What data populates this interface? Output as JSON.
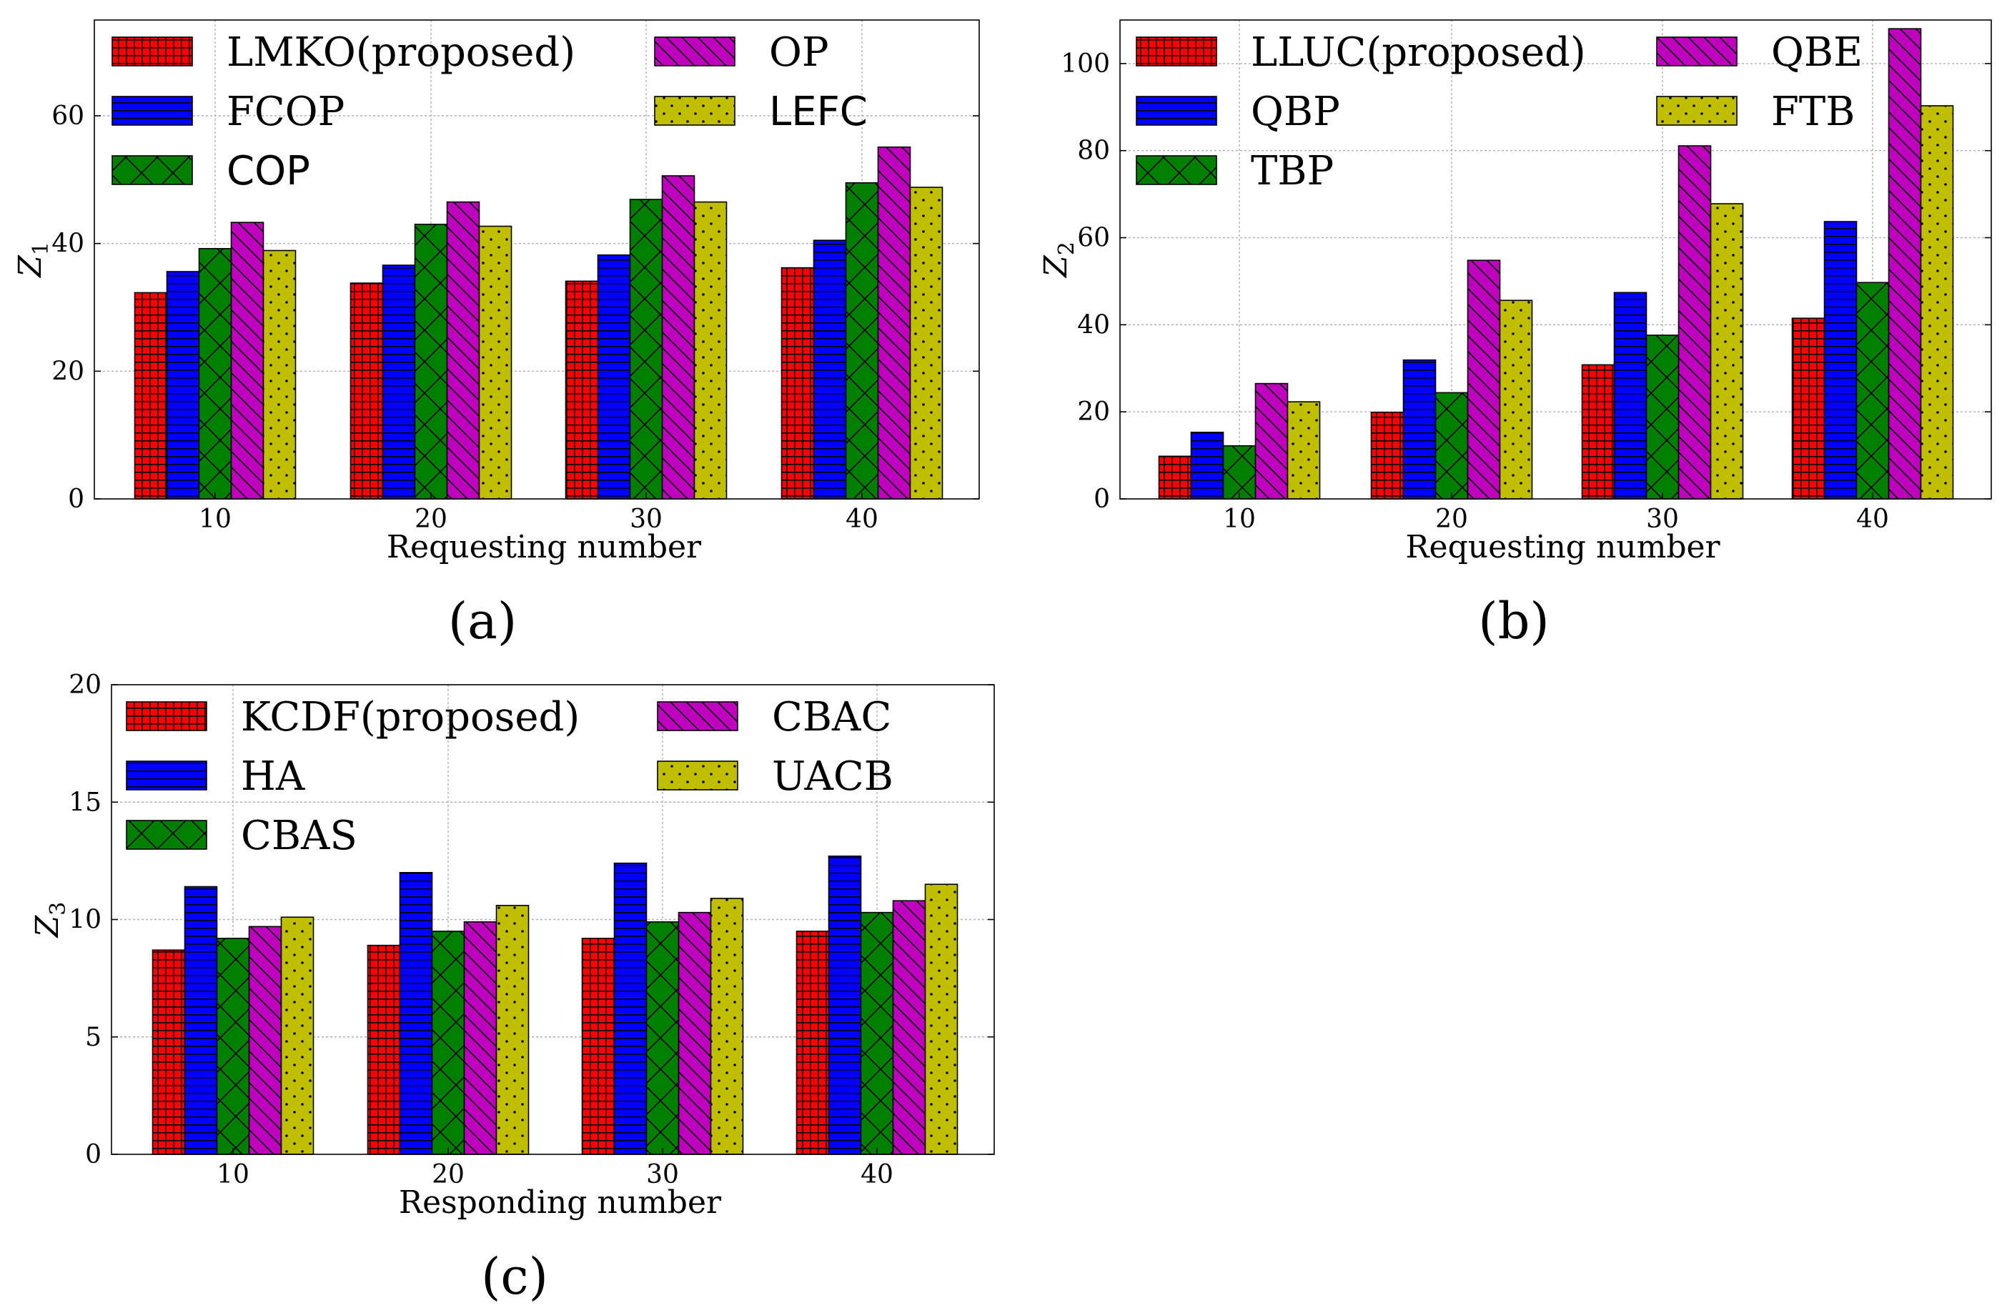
{
  "colors": {
    "red": "#ff0000",
    "blue": "#0000ff",
    "green": "#007f00",
    "magenta": "#bf00bf",
    "olive": "#bfbf00"
  },
  "hatches": [
    "grid",
    "horizontal",
    "cross",
    "diagonal",
    "dots"
  ],
  "chart_data": [
    {
      "type": "bar",
      "panel_label": "(a)",
      "xlabel": "Requesting number",
      "ylabel": "Z",
      "ylabel_sub": "1",
      "categories": [
        "10",
        "20",
        "30",
        "40"
      ],
      "ylim": [
        0,
        75
      ],
      "yticks": [
        0,
        20,
        40,
        60
      ],
      "grid": true,
      "legend_position": "top",
      "series": [
        {
          "name": "LMKO(proposed)",
          "values": [
            32.3,
            33.8,
            34.1,
            36.2
          ]
        },
        {
          "name": "FCOP",
          "values": [
            35.6,
            36.6,
            38.2,
            40.5
          ]
        },
        {
          "name": "COP",
          "values": [
            39.2,
            43.0,
            46.9,
            49.5
          ]
        },
        {
          "name": "OP",
          "values": [
            43.3,
            46.5,
            50.6,
            55.1
          ]
        },
        {
          "name": "LEFC",
          "values": [
            38.9,
            42.7,
            46.5,
            48.8
          ]
        }
      ]
    },
    {
      "type": "bar",
      "panel_label": "(b)",
      "xlabel": "Requesting number",
      "ylabel": "Z",
      "ylabel_sub": "2",
      "categories": [
        "10",
        "20",
        "30",
        "40"
      ],
      "ylim": [
        0,
        110
      ],
      "yticks": [
        0,
        20,
        40,
        60,
        80,
        100
      ],
      "grid": true,
      "legend_position": "top",
      "series": [
        {
          "name": "LLUC(proposed)",
          "values": [
            9.8,
            19.9,
            30.8,
            41.5
          ]
        },
        {
          "name": "QBP",
          "values": [
            15.3,
            31.9,
            47.4,
            63.7
          ]
        },
        {
          "name": "TBP",
          "values": [
            12.2,
            24.4,
            37.6,
            49.7
          ]
        },
        {
          "name": "QBE",
          "values": [
            26.5,
            54.8,
            81.1,
            108.0
          ]
        },
        {
          "name": "FTB",
          "values": [
            22.3,
            45.6,
            67.8,
            90.3
          ]
        }
      ]
    },
    {
      "type": "bar",
      "panel_label": "(c)",
      "xlabel": "Responding number",
      "ylabel": "Z",
      "ylabel_sub": "3",
      "categories": [
        "10",
        "20",
        "30",
        "40"
      ],
      "ylim": [
        0,
        20
      ],
      "yticks": [
        0,
        5,
        10,
        15,
        20
      ],
      "grid": true,
      "legend_position": "top",
      "series": [
        {
          "name": "KCDF(proposed)",
          "values": [
            8.7,
            8.9,
            9.2,
            9.5
          ]
        },
        {
          "name": "HA",
          "values": [
            11.4,
            12.0,
            12.4,
            12.7
          ]
        },
        {
          "name": "CBAS",
          "values": [
            9.2,
            9.5,
            9.9,
            10.3
          ]
        },
        {
          "name": "CBAC",
          "values": [
            9.7,
            9.9,
            10.3,
            10.8
          ]
        },
        {
          "name": "UACB",
          "values": [
            10.1,
            10.6,
            10.9,
            11.5
          ]
        }
      ]
    }
  ]
}
